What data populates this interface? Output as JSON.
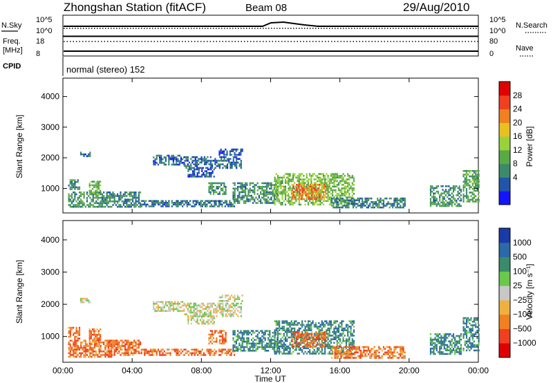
{
  "header": {
    "station": "Zhongshan Station (fitACF)",
    "beam": "Beam 08",
    "date": "29/Aug/2010"
  },
  "panels": {
    "sky": {
      "left_label": "N.Sky",
      "right_label": "N.Search",
      "tick_top": "10^5",
      "tick_bottom": "10^0"
    },
    "freq": {
      "left_label_1": "Freq.",
      "left_label_2": "[MHz]",
      "right_label": "Nave",
      "ticks_left": [
        "18",
        "8"
      ],
      "ticks_right": [
        "80",
        "0"
      ]
    },
    "cpid": {
      "label": "CPID",
      "text": "normal (stereo) 152"
    }
  },
  "x_axis": {
    "label": "Time UT",
    "ticks": [
      "00:00",
      "04:00",
      "08:00",
      "12:00",
      "16:00",
      "20:00",
      "00:00"
    ]
  },
  "colors": {
    "power_scale": [
      "#1414ff",
      "#2255aa",
      "#3b8a6a",
      "#5aaa44",
      "#9ad23a",
      "#e8c020",
      "#f08020",
      "#f04020",
      "#e00000"
    ],
    "velocity_scale": [
      "#e00000",
      "#f04020",
      "#f08020",
      "#f0b040",
      "#c8c8c8",
      "#6ac84a",
      "#3b8a6a",
      "#2a6aa8",
      "#1a3aa8"
    ]
  },
  "chart_data": [
    {
      "type": "heatmap",
      "name": "power",
      "ylabel": "Slant Range [km]",
      "xlabel": "",
      "x_range_hours": [
        0,
        24
      ],
      "ylim": [
        200,
        4600
      ],
      "yticks": [
        "4000",
        "3000",
        "2000",
        "1000"
      ],
      "colorbar": {
        "label": "Power [dB]",
        "ticks": [
          "28",
          "24",
          "20",
          "16",
          "12",
          "8",
          "4"
        ],
        "range": [
          0,
          30
        ]
      },
      "blobs": [
        {
          "t0": 0.3,
          "t1": 2.8,
          "r0": 380,
          "r1": 900,
          "v": 9
        },
        {
          "t0": 0.3,
          "t1": 1.0,
          "r0": 950,
          "r1": 1300,
          "v": 9
        },
        {
          "t0": 1.0,
          "t1": 1.6,
          "r0": 2050,
          "r1": 2200,
          "v": 5
        },
        {
          "t0": 1.5,
          "t1": 2.2,
          "r0": 800,
          "r1": 1250,
          "v": 11
        },
        {
          "t0": 2.5,
          "t1": 4.5,
          "r0": 400,
          "r1": 900,
          "v": 8
        },
        {
          "t0": 4.5,
          "t1": 9.9,
          "r0": 400,
          "r1": 620,
          "v": 7
        },
        {
          "t0": 5.2,
          "t1": 7.0,
          "r0": 1800,
          "r1": 2100,
          "v": 6
        },
        {
          "t0": 7.0,
          "t1": 10.3,
          "r0": 1650,
          "r1": 2050,
          "v": 6
        },
        {
          "t0": 7.2,
          "t1": 8.7,
          "r0": 1400,
          "r1": 1650,
          "v": 5
        },
        {
          "t0": 8.4,
          "t1": 9.4,
          "r0": 800,
          "r1": 1200,
          "v": 9
        },
        {
          "t0": 9.0,
          "t1": 10.4,
          "r0": 2100,
          "r1": 2300,
          "v": 5
        },
        {
          "t0": 9.8,
          "t1": 12.4,
          "r0": 550,
          "r1": 1200,
          "v": 9
        },
        {
          "t0": 12.2,
          "t1": 16.8,
          "r0": 450,
          "r1": 1500,
          "v": 13
        },
        {
          "t0": 13.2,
          "t1": 15.2,
          "r0": 650,
          "r1": 1150,
          "v": 22
        },
        {
          "t0": 15.5,
          "t1": 19.8,
          "r0": 350,
          "r1": 700,
          "v": 8
        },
        {
          "t0": 21.2,
          "t1": 23.0,
          "r0": 450,
          "r1": 1100,
          "v": 9
        },
        {
          "t0": 23.1,
          "t1": 24.0,
          "r0": 550,
          "r1": 1600,
          "v": 11
        }
      ]
    },
    {
      "type": "heatmap",
      "name": "velocity",
      "ylabel": "Slant Range [km]",
      "xlabel": "Time UT",
      "x_range_hours": [
        0,
        24
      ],
      "ylim": [
        200,
        4600
      ],
      "yticks": [
        "4000",
        "3000",
        "2000",
        "1000"
      ],
      "colorbar": {
        "label": "Velocity [m s⁻¹]",
        "ticks": [
          "1000",
          "500",
          "100",
          "25",
          "−25",
          "−100",
          "−500",
          "−1000"
        ],
        "range": [
          0,
          8
        ]
      },
      "blobs": [
        {
          "t0": 0.3,
          "t1": 2.8,
          "r0": 380,
          "r1": 900,
          "v": 2
        },
        {
          "t0": 0.3,
          "t1": 1.0,
          "r0": 950,
          "r1": 1300,
          "v": 2
        },
        {
          "t0": 1.0,
          "t1": 1.6,
          "r0": 2050,
          "r1": 2200,
          "v": 4
        },
        {
          "t0": 1.5,
          "t1": 2.2,
          "r0": 800,
          "r1": 1250,
          "v": 2
        },
        {
          "t0": 2.5,
          "t1": 4.5,
          "r0": 400,
          "r1": 900,
          "v": 2
        },
        {
          "t0": 4.5,
          "t1": 9.9,
          "r0": 400,
          "r1": 620,
          "v": 2
        },
        {
          "t0": 5.2,
          "t1": 7.0,
          "r0": 1800,
          "r1": 2100,
          "v": 4
        },
        {
          "t0": 7.0,
          "t1": 10.3,
          "r0": 1650,
          "r1": 2050,
          "v": 4
        },
        {
          "t0": 7.2,
          "t1": 8.7,
          "r0": 1400,
          "r1": 1650,
          "v": 4
        },
        {
          "t0": 8.4,
          "t1": 9.4,
          "r0": 800,
          "r1": 1200,
          "v": 2
        },
        {
          "t0": 9.0,
          "t1": 10.4,
          "r0": 2100,
          "r1": 2300,
          "v": 4
        },
        {
          "t0": 9.8,
          "t1": 12.4,
          "r0": 550,
          "r1": 1200,
          "v": 6
        },
        {
          "t0": 12.2,
          "t1": 16.8,
          "r0": 450,
          "r1": 1500,
          "v": 6
        },
        {
          "t0": 13.2,
          "t1": 15.2,
          "r0": 650,
          "r1": 1150,
          "v": 2
        },
        {
          "t0": 15.5,
          "t1": 19.8,
          "r0": 350,
          "r1": 700,
          "v": 2
        },
        {
          "t0": 21.2,
          "t1": 23.0,
          "r0": 450,
          "r1": 1100,
          "v": 6
        },
        {
          "t0": 23.1,
          "t1": 24.0,
          "r0": 550,
          "r1": 1600,
          "v": 6
        }
      ]
    }
  ]
}
